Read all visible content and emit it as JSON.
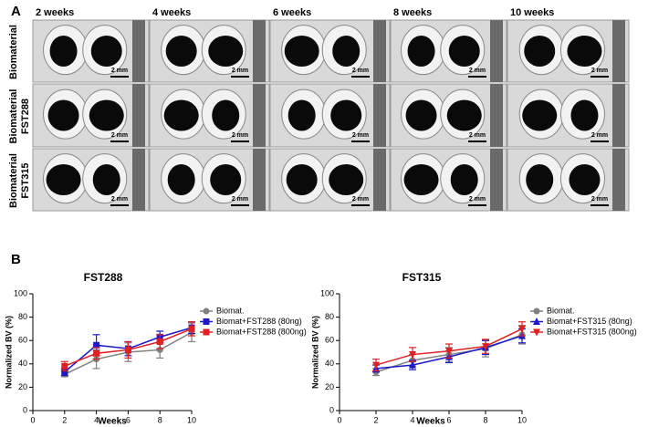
{
  "panel_a": {
    "label": "A",
    "columns": [
      "2 weeks",
      "4 weeks",
      "6 weeks",
      "8 weeks",
      "10 weeks"
    ],
    "rows": [
      [
        "Biomaterial"
      ],
      [
        "Biomaterial",
        "FST288"
      ],
      [
        "Biomaterial",
        "FST315"
      ]
    ],
    "scale_bar": "2 mm"
  },
  "panel_b": {
    "label": "B"
  },
  "chart_data": [
    {
      "type": "line",
      "title": "FST288",
      "x_label": "Weeks",
      "y_label": "Normalized BV (%)",
      "x": [
        2,
        4,
        6,
        8,
        10
      ],
      "xlim": [
        0,
        10
      ],
      "xticks": [
        0,
        2,
        4,
        6,
        8,
        10
      ],
      "ylim": [
        0,
        100
      ],
      "yticks": [
        0,
        20,
        40,
        60,
        80,
        100
      ],
      "series": [
        {
          "name": "Biomat.",
          "color": "#808080",
          "marker": "circle",
          "values": [
            31,
            44,
            50,
            52,
            67
          ],
          "errors": [
            2,
            8,
            8,
            7,
            8
          ]
        },
        {
          "name": "Biomat+FST288 (80ng)",
          "color": "#1a1acc",
          "marker": "square",
          "values": [
            33,
            56,
            53,
            63,
            71
          ],
          "errors": [
            3,
            9,
            6,
            5,
            5
          ]
        },
        {
          "name": "Biomat+FST288 (800ng)",
          "color": "#e02020",
          "marker": "square",
          "values": [
            38,
            49,
            52,
            59,
            70
          ],
          "errors": [
            4,
            5,
            7,
            6,
            6
          ]
        }
      ]
    },
    {
      "type": "line",
      "title": "FST315",
      "x_label": "Weeks",
      "y_label": "Normalized BV (%)",
      "x": [
        2,
        4,
        6,
        8,
        10
      ],
      "xlim": [
        0,
        10
      ],
      "xticks": [
        0,
        2,
        4,
        6,
        8,
        10
      ],
      "ylim": [
        0,
        100
      ],
      "yticks": [
        0,
        20,
        40,
        60,
        80,
        100
      ],
      "series": [
        {
          "name": "Biomat.",
          "color": "#808080",
          "marker": "circle",
          "values": [
            33,
            43,
            48,
            53,
            65
          ],
          "errors": [
            3,
            5,
            6,
            7,
            8
          ]
        },
        {
          "name": "Biomat+FST315 (80ng)",
          "color": "#1a1acc",
          "marker": "triangle-up",
          "values": [
            36,
            39,
            46,
            54,
            64
          ],
          "errors": [
            3,
            4,
            5,
            6,
            6
          ]
        },
        {
          "name": "Biomat+FST315 (800ng)",
          "color": "#e02020",
          "marker": "triangle-down",
          "values": [
            39,
            48,
            51,
            55,
            70
          ],
          "errors": [
            5,
            6,
            6,
            6,
            6
          ]
        }
      ]
    }
  ]
}
